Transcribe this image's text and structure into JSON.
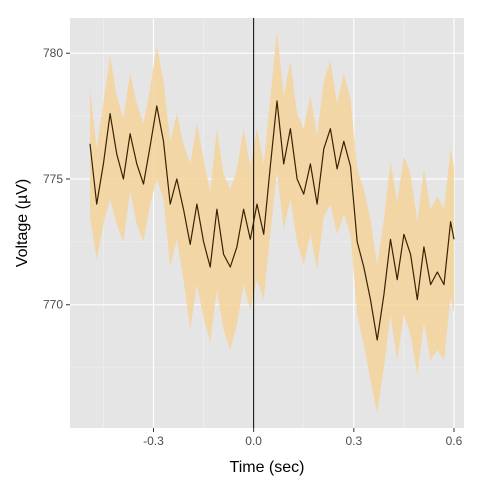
{
  "chart_data": {
    "type": "line",
    "title": "",
    "xlabel": "Time (sec)",
    "ylabel": "Voltage (µV)",
    "xlim": [
      -0.55,
      0.63
    ],
    "ylim": [
      765.1,
      781.4
    ],
    "x_ticks": [
      -0.3,
      0.0,
      0.3,
      0.6
    ],
    "x_tick_labels": [
      "-0.3",
      "0.0",
      "0.3",
      "0.6"
    ],
    "y_ticks": [
      770,
      775,
      780
    ],
    "y_tick_labels": [
      "770",
      "775",
      "780"
    ],
    "grid": true,
    "background": "#e5e5e5",
    "vline_x": 0.0,
    "series": [
      {
        "x": [
          -0.49,
          -0.47,
          -0.45,
          -0.43,
          -0.41,
          -0.39,
          -0.37,
          -0.35,
          -0.33,
          -0.31,
          -0.29,
          -0.27,
          -0.25,
          -0.23,
          -0.21,
          -0.19,
          -0.17,
          -0.15,
          -0.13,
          -0.11,
          -0.09,
          -0.07,
          -0.05,
          -0.03,
          -0.01,
          0.01,
          0.03,
          0.05,
          0.07,
          0.09,
          0.11,
          0.13,
          0.15,
          0.17,
          0.19,
          0.21,
          0.23,
          0.25,
          0.27,
          0.29,
          0.31,
          0.33,
          0.35,
          0.37,
          0.39,
          0.41,
          0.43,
          0.45,
          0.47,
          0.49,
          0.51,
          0.53,
          0.55,
          0.57,
          0.59,
          0.6
        ],
        "mean": [
          776.4,
          774.0,
          775.6,
          777.6,
          776.0,
          775.0,
          776.8,
          775.6,
          774.8,
          776.3,
          777.9,
          776.5,
          774.0,
          775.0,
          773.8,
          772.4,
          774.0,
          772.5,
          771.5,
          773.8,
          772.0,
          771.5,
          772.3,
          773.8,
          772.6,
          774.0,
          772.8,
          775.5,
          778.1,
          775.6,
          777.0,
          775.0,
          774.4,
          775.6,
          774.0,
          776.2,
          777.0,
          775.4,
          776.5,
          775.5,
          772.5,
          771.5,
          770.2,
          768.6,
          770.4,
          772.6,
          771.0,
          772.8,
          772.0,
          770.2,
          772.3,
          770.8,
          771.3,
          770.8,
          773.3,
          772.6
        ],
        "lower": [
          773.5,
          771.8,
          773.2,
          774.2,
          773.2,
          772.5,
          774.5,
          773.2,
          772.5,
          774.0,
          775.0,
          774.2,
          771.5,
          772.6,
          771.0,
          769.0,
          770.8,
          769.5,
          768.5,
          770.6,
          769.0,
          768.2,
          769.2,
          770.8,
          769.8,
          771.0,
          770.2,
          772.8,
          775.3,
          773.0,
          774.2,
          772.5,
          771.6,
          772.8,
          771.4,
          773.5,
          774.0,
          772.8,
          773.6,
          772.8,
          769.6,
          768.4,
          767.0,
          765.7,
          767.5,
          769.6,
          767.8,
          769.6,
          768.8,
          767.2,
          769.3,
          767.8,
          768.2,
          767.8,
          770.3,
          769.7
        ],
        "upper": [
          778.6,
          776.2,
          778.0,
          779.9,
          778.3,
          777.4,
          779.2,
          778.0,
          777.2,
          778.6,
          780.3,
          778.9,
          776.5,
          777.6,
          776.4,
          775.6,
          777.2,
          775.8,
          774.5,
          777.0,
          775.2,
          774.6,
          775.4,
          777.0,
          775.5,
          777.0,
          775.6,
          778.2,
          780.9,
          778.3,
          779.7,
          777.6,
          777.0,
          778.3,
          776.7,
          778.9,
          779.7,
          778.0,
          779.2,
          778.2,
          775.4,
          774.6,
          773.4,
          771.6,
          773.4,
          775.7,
          774.1,
          775.9,
          775.2,
          773.3,
          775.4,
          773.8,
          774.3,
          773.8,
          776.2,
          775.5
        ]
      }
    ],
    "colors": {
      "line": "#3a2200",
      "ribbon": "#f5d39b",
      "vline": "#000000",
      "grid_major": "#ffffff",
      "grid_minor": "#f0f0f0"
    }
  }
}
